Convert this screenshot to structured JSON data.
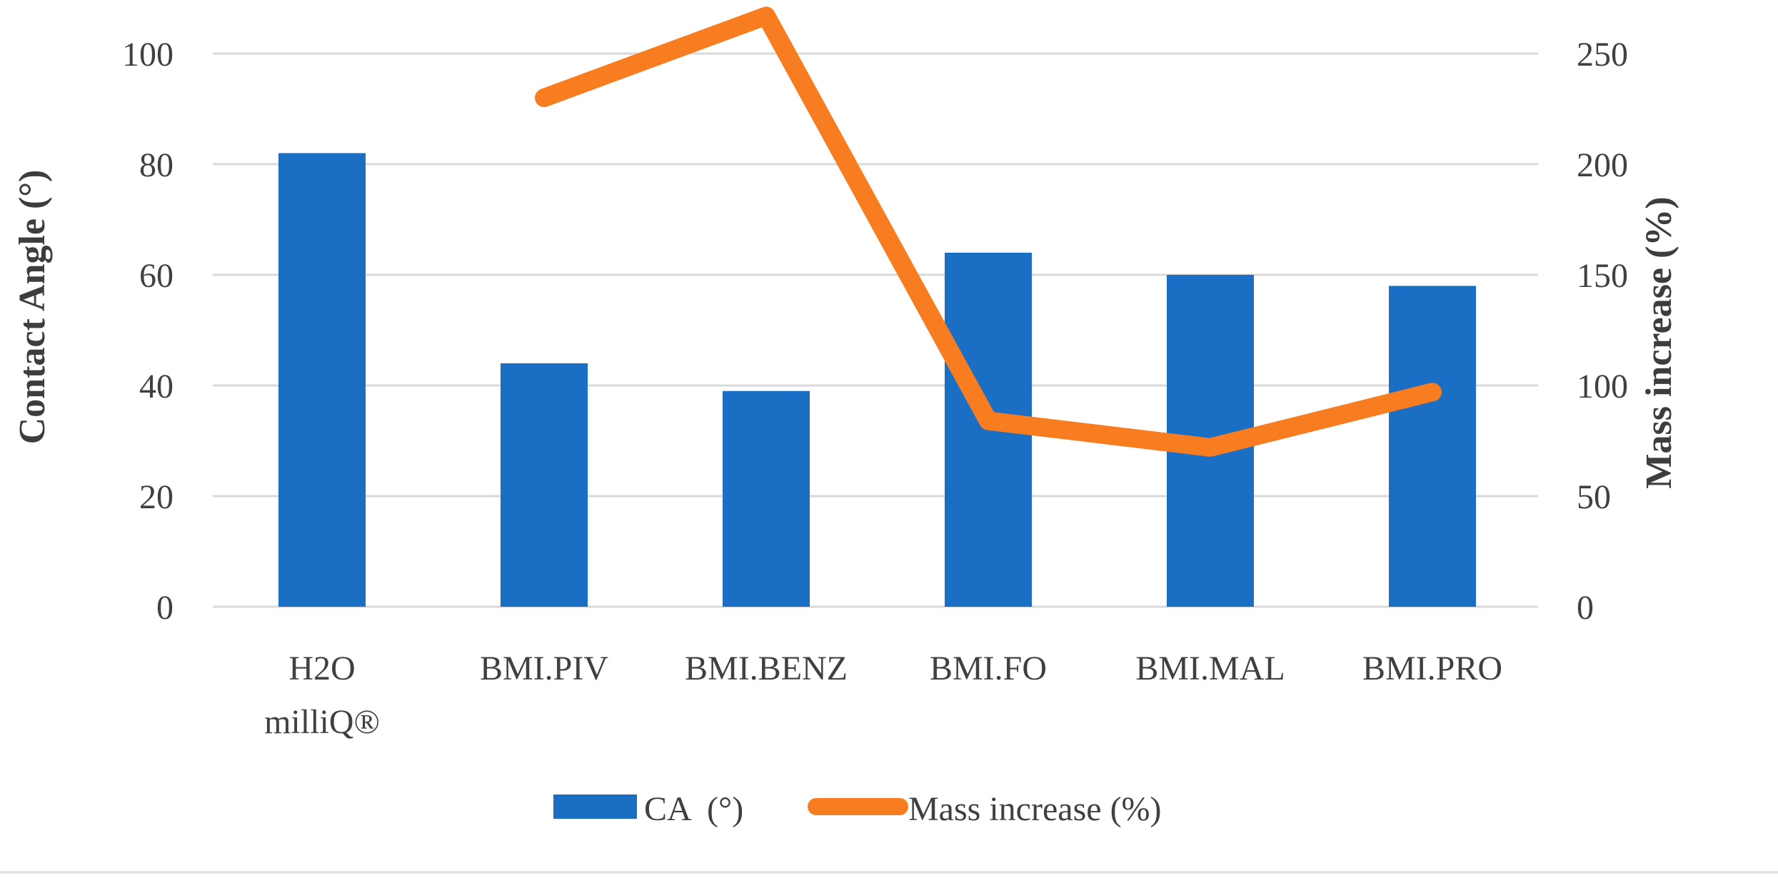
{
  "figure": {
    "background": "#ffffff",
    "divider_color": "#dfdfdf",
    "grid_color": "#d9d9d9",
    "text_color": "#404040"
  },
  "chart_data": {
    "type": "combo-bar-line",
    "categories": [
      [
        "H2O",
        "milliQ®"
      ],
      [
        "BMI.PIV"
      ],
      [
        "BMI.BENZ"
      ],
      [
        "BMI.FO"
      ],
      [
        "BMI.MAL"
      ],
      [
        "BMI.PRO"
      ]
    ],
    "bar_series": {
      "name": "CA  (°)",
      "values": [
        82,
        44,
        39,
        64,
        60,
        58
      ],
      "color": "#1a6fc5",
      "axis": "left"
    },
    "line_series": {
      "name": "Mass increase (%)",
      "values": [
        null,
        230,
        267,
        84,
        72,
        97
      ],
      "color": "#f87d21",
      "axis": "right"
    },
    "y_left": {
      "title": "Contact Angle (°)",
      "min": 0,
      "max": 100,
      "ticks": [
        0,
        20,
        40,
        60,
        80,
        100
      ],
      "tick_labels": [
        "0",
        "20",
        "40",
        "60",
        "80",
        "100"
      ]
    },
    "y_right": {
      "title": "Mass increase (%)",
      "min": 0,
      "max": 250,
      "ticks": [
        0,
        50,
        100,
        150,
        200,
        250
      ],
      "tick_labels": [
        "0",
        "50",
        "100",
        "150",
        "200",
        "250"
      ]
    },
    "grid": true,
    "legend_position": "bottom"
  }
}
